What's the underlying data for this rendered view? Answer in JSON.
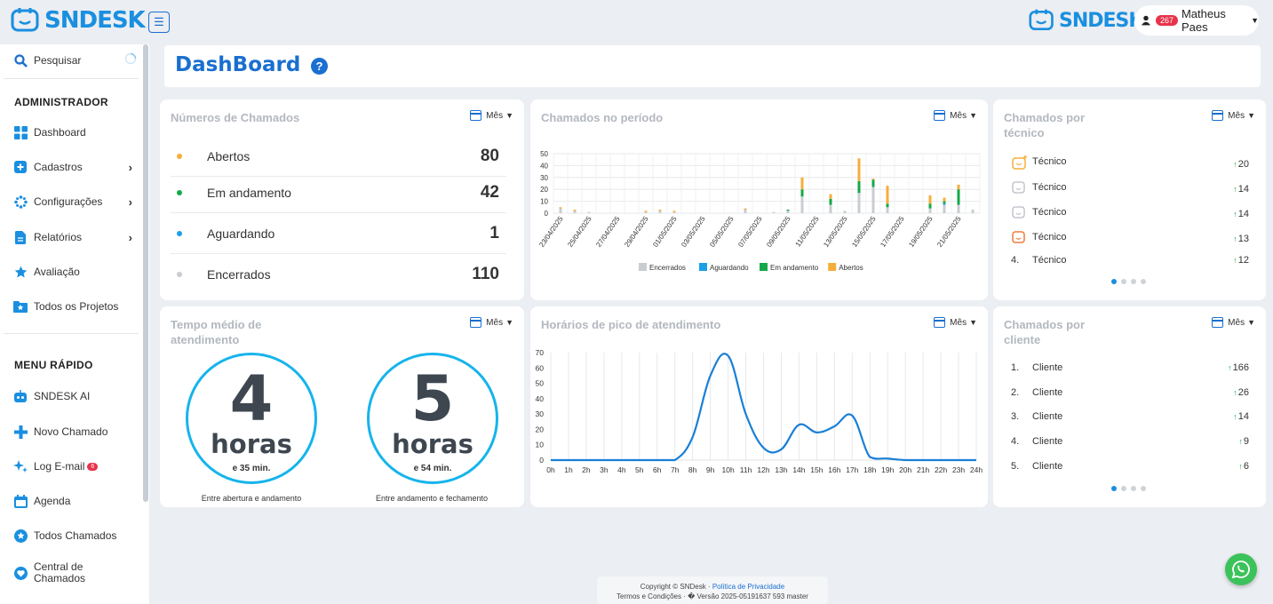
{
  "brand": {
    "logo_text": "SNDESK",
    "logo_text_right": "SNDESK"
  },
  "header": {
    "notif_count": "267",
    "user_name": "Matheus Paes"
  },
  "sidebar": {
    "search_label": "Pesquisar",
    "section_admin": "ADMINISTRADOR",
    "admin_items": [
      {
        "label": "Dashboard",
        "icon": "grid-icon"
      },
      {
        "label": "Cadastros",
        "icon": "plus-square-icon"
      },
      {
        "label": "Configurações",
        "icon": "settings-icon"
      },
      {
        "label": "Relatórios",
        "icon": "report-icon"
      },
      {
        "label": "Avaliação",
        "icon": "star-icon"
      },
      {
        "label": "Todos os Projetos",
        "icon": "folder-star-icon"
      }
    ],
    "section_quick": "MENU RÁPIDO",
    "quick_items": [
      {
        "label": "SNDESK AI",
        "icon": "robot-icon"
      },
      {
        "label": "Novo Chamado",
        "icon": "plus-icon"
      },
      {
        "label": "Log E-mail",
        "icon": "sparkle-icon",
        "badge": "6"
      },
      {
        "label": "Agenda",
        "icon": "calendar-icon"
      },
      {
        "label": "Todos Chamados",
        "icon": "star-circle-icon"
      },
      {
        "label": "Central de Chamados",
        "icon": "heart-circle-icon"
      }
    ]
  },
  "page": {
    "title": "DashBoard"
  },
  "period_label": "Mês",
  "card_numeros": {
    "title": "Números de Chamados",
    "rows": [
      {
        "label": "Abertos",
        "value": "80",
        "color": "#f5ad3c"
      },
      {
        "label": "Em andamento",
        "value": "42",
        "color": "#14a84a"
      },
      {
        "label": "Aguardando",
        "value": "1",
        "color": "#1ba0e8"
      },
      {
        "label": "Encerrados",
        "value": "110",
        "color": "#c9ccd0"
      }
    ]
  },
  "card_periodo": {
    "title": "Chamados no período",
    "chart_data": {
      "type": "bar",
      "stacked": true,
      "categories": [
        "23/04/2025",
        "24/04/2025",
        "25/04/2025",
        "26/04/2025",
        "27/04/2025",
        "28/04/2025",
        "29/04/2025",
        "30/04/2025",
        "01/05/2025",
        "02/05/2025",
        "03/05/2025",
        "04/05/2025",
        "05/05/2025",
        "06/05/2025",
        "07/05/2025",
        "08/05/2025",
        "09/05/2025",
        "10/05/2025",
        "11/05/2025",
        "12/05/2025",
        "13/05/2025",
        "14/05/2025",
        "15/05/2025",
        "16/05/2025",
        "17/05/2025",
        "18/05/2025",
        "19/05/2025",
        "20/05/2025",
        "21/05/2025",
        "22/05/2025"
      ],
      "tick_labels": [
        "23/04/2025",
        "25/04/2025",
        "27/04/2025",
        "29/04/2025",
        "01/05/2025",
        "03/05/2025",
        "05/05/2025",
        "07/05/2025",
        "09/05/2025",
        "11/05/2025",
        "13/05/2025",
        "15/05/2025",
        "17/05/2025",
        "19/05/2025",
        "21/05/2025"
      ],
      "series": [
        {
          "name": "Encerrados",
          "color": "#c9ccd0",
          "values": [
            4,
            2,
            1,
            0,
            0,
            0,
            1,
            2,
            1,
            0,
            0,
            0,
            0,
            3,
            0,
            1,
            2,
            14,
            0,
            7,
            2,
            17,
            22,
            5,
            0,
            0,
            4,
            7,
            7,
            3
          ]
        },
        {
          "name": "Aguardando",
          "color": "#1ba0e8",
          "values": [
            0,
            0,
            0,
            0,
            0,
            0,
            0,
            0,
            0,
            0,
            0,
            0,
            0,
            0,
            0,
            0,
            0,
            0,
            0,
            0,
            0,
            0,
            0,
            0,
            0,
            0,
            0,
            1,
            0,
            0
          ]
        },
        {
          "name": "Em andamento",
          "color": "#14a84a",
          "values": [
            0,
            0,
            0,
            0,
            0,
            0,
            0,
            0,
            0,
            0,
            0,
            0,
            0,
            0,
            0,
            0,
            1,
            6,
            0,
            5,
            0,
            10,
            6,
            3,
            0,
            0,
            4,
            2,
            13,
            0
          ]
        },
        {
          "name": "Abertos",
          "color": "#f5ad3c",
          "values": [
            1,
            1,
            0,
            0,
            0,
            0,
            1,
            1,
            1,
            0,
            0,
            0,
            0,
            1,
            0,
            0,
            0,
            10,
            0,
            4,
            0,
            19,
            1,
            15,
            0,
            0,
            7,
            3,
            4,
            0
          ]
        }
      ],
      "ylim": [
        0,
        50
      ],
      "yticks": [
        0,
        10,
        20,
        30,
        40,
        50
      ],
      "legend": "bottom"
    }
  },
  "card_tecnico": {
    "title_line1": "Chamados por",
    "title_line2": "técnico",
    "rows": [
      {
        "rank": "",
        "icon": "avatar-sparkle-icon",
        "name": "Técnico",
        "value": "20"
      },
      {
        "rank": "",
        "icon": "avatar-gray-icon",
        "name": "Técnico",
        "value": "14"
      },
      {
        "rank": "",
        "icon": "avatar-gray-icon",
        "name": "Técnico",
        "value": "14"
      },
      {
        "rank": "",
        "icon": "avatar-orange-icon",
        "name": "Técnico",
        "value": "13"
      },
      {
        "rank": "4.",
        "icon": "",
        "name": "Técnico",
        "value": "12"
      }
    ]
  },
  "card_tempo": {
    "title_line1": "Tempo médio de",
    "title_line2": "atendimento",
    "circles": [
      {
        "num": "4",
        "unit": "horas",
        "min": "e 35 min.",
        "caption": "Entre abertura e andamento"
      },
      {
        "num": "5",
        "unit": "horas",
        "min": "e 54 min.",
        "caption": "Entre andamento e fechamento"
      }
    ]
  },
  "card_pico": {
    "title": "Horários de pico de atendimento",
    "chart_data": {
      "type": "line",
      "x": [
        "0h",
        "1h",
        "2h",
        "3h",
        "4h",
        "5h",
        "6h",
        "7h",
        "8h",
        "9h",
        "10h",
        "11h",
        "12h",
        "13h",
        "14h",
        "15h",
        "16h",
        "17h",
        "18h",
        "19h",
        "20h",
        "21h",
        "22h",
        "23h",
        "24h"
      ],
      "series": [
        {
          "name": "",
          "color": "#1a7fd6",
          "values": [
            0,
            0,
            0,
            0,
            0,
            0,
            0,
            0,
            15,
            55,
            68,
            30,
            8,
            7,
            23,
            18,
            22,
            29,
            2,
            1,
            0,
            0,
            0,
            0,
            0
          ]
        }
      ],
      "ylim": [
        0,
        70
      ],
      "yticks": [
        0,
        10,
        20,
        30,
        40,
        50,
        60,
        70
      ],
      "grid": "vertical"
    }
  },
  "card_cliente": {
    "title_line1": "Chamados por",
    "title_line2": "cliente",
    "rows": [
      {
        "rank": "1.",
        "name": "Cliente",
        "value": "166"
      },
      {
        "rank": "2.",
        "name": "Cliente",
        "value": "26"
      },
      {
        "rank": "3.",
        "name": "Cliente",
        "value": "14"
      },
      {
        "rank": "4.",
        "name": "Cliente",
        "value": "9"
      },
      {
        "rank": "5.",
        "name": "Cliente",
        "value": "6"
      }
    ]
  },
  "footer": {
    "line1_a": "Copyright © SNDesk · ",
    "line1_b": "Política de Privacidade",
    "line2_a": "Termos e Condições",
    "line2_b": " · � Versão 2025-05191637 593 master"
  }
}
